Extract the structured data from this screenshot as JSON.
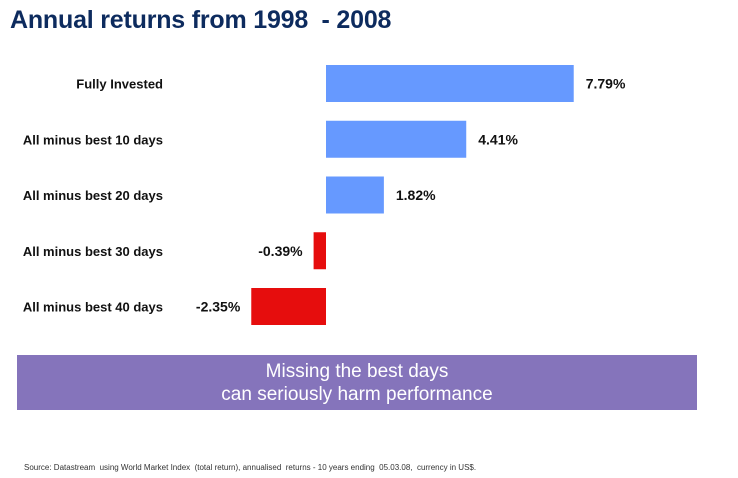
{
  "title": "Annual returns from 1998  - 2008",
  "chart_data": {
    "type": "bar",
    "orientation": "horizontal",
    "categories": [
      "Fully Invested",
      "All minus best 10 days",
      "All minus best 20 days",
      "All minus best 30 days",
      "All minus best 40 days"
    ],
    "values": [
      7.79,
      4.41,
      1.82,
      -0.39,
      -2.35
    ],
    "value_labels": [
      "7.79%",
      "4.41%",
      "1.82%",
      "-0.39%",
      "-2.35%"
    ],
    "positive_color": "#6699ff",
    "negative_color": "#e60d0d",
    "xlabel": "",
    "ylabel": "",
    "grid": false
  },
  "banner": {
    "line1": "Missing the best days",
    "line2": "can seriously harm performance",
    "color": "#8574bb"
  },
  "source": "Source: Datastream  using World Market Index  (total return), annualised  returns - 10 years ending  05.03.08,  currency in US$."
}
